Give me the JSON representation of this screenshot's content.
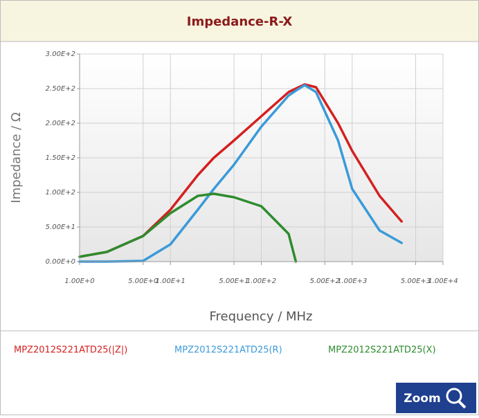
{
  "chart_data": {
    "type": "line",
    "title": "Impedance-R-X",
    "x_label": "Frequency / MHz",
    "y_label": "Impedance / Ω",
    "x_log": true,
    "grid": true,
    "xlim": [
      1,
      10000
    ],
    "xticks": [
      {
        "value": 1,
        "label": "1.00E+0"
      },
      {
        "value": 5,
        "label": "5.00E+0"
      },
      {
        "value": 10,
        "label": "1.00E+1"
      },
      {
        "value": 50,
        "label": "5.00E+1"
      },
      {
        "value": 100,
        "label": "1.00E+2"
      },
      {
        "value": 500,
        "label": "5.00E+2"
      },
      {
        "value": 1000,
        "label": "1.00E+3"
      },
      {
        "value": 5000,
        "label": "5.00E+3"
      },
      {
        "value": 10000,
        "label": "1.00E+4"
      }
    ],
    "ylim": [
      0,
      300
    ],
    "yticks": [
      {
        "value": 0,
        "label": "0.00E+0"
      },
      {
        "value": 50,
        "label": "5.00E+1"
      },
      {
        "value": 100,
        "label": "1.00E+2"
      },
      {
        "value": 150,
        "label": "1.50E+2"
      },
      {
        "value": 200,
        "label": "2.00E+2"
      },
      {
        "value": 250,
        "label": "2.50E+2"
      },
      {
        "value": 300,
        "label": "3.00E+2"
      }
    ],
    "x": [
      1,
      2,
      5,
      10,
      20,
      30,
      50,
      100,
      200,
      240,
      300,
      400,
      700,
      1000,
      2000,
      3500
    ],
    "series": [
      {
        "name": "MPZ2012S221ATD25(|Z|)",
        "color": "#d42020",
        "values": [
          7,
          14,
          37,
          75,
          125,
          150,
          175,
          210,
          245,
          250,
          256,
          252,
          200,
          160,
          95,
          58
        ]
      },
      {
        "name": "MPZ2012S221ATD25(R)",
        "color": "#3a9ad9",
        "values": [
          0,
          0,
          1,
          25,
          75,
          105,
          140,
          195,
          240,
          247,
          255,
          245,
          175,
          105,
          45,
          27
        ]
      },
      {
        "name": "MPZ2012S221ATD25(X)",
        "color": "#2e8b2e",
        "values": [
          7,
          14,
          37,
          70,
          95,
          98,
          93,
          80,
          40,
          0,
          null,
          null,
          null,
          null,
          null,
          null
        ]
      }
    ],
    "button": "Zoom"
  }
}
